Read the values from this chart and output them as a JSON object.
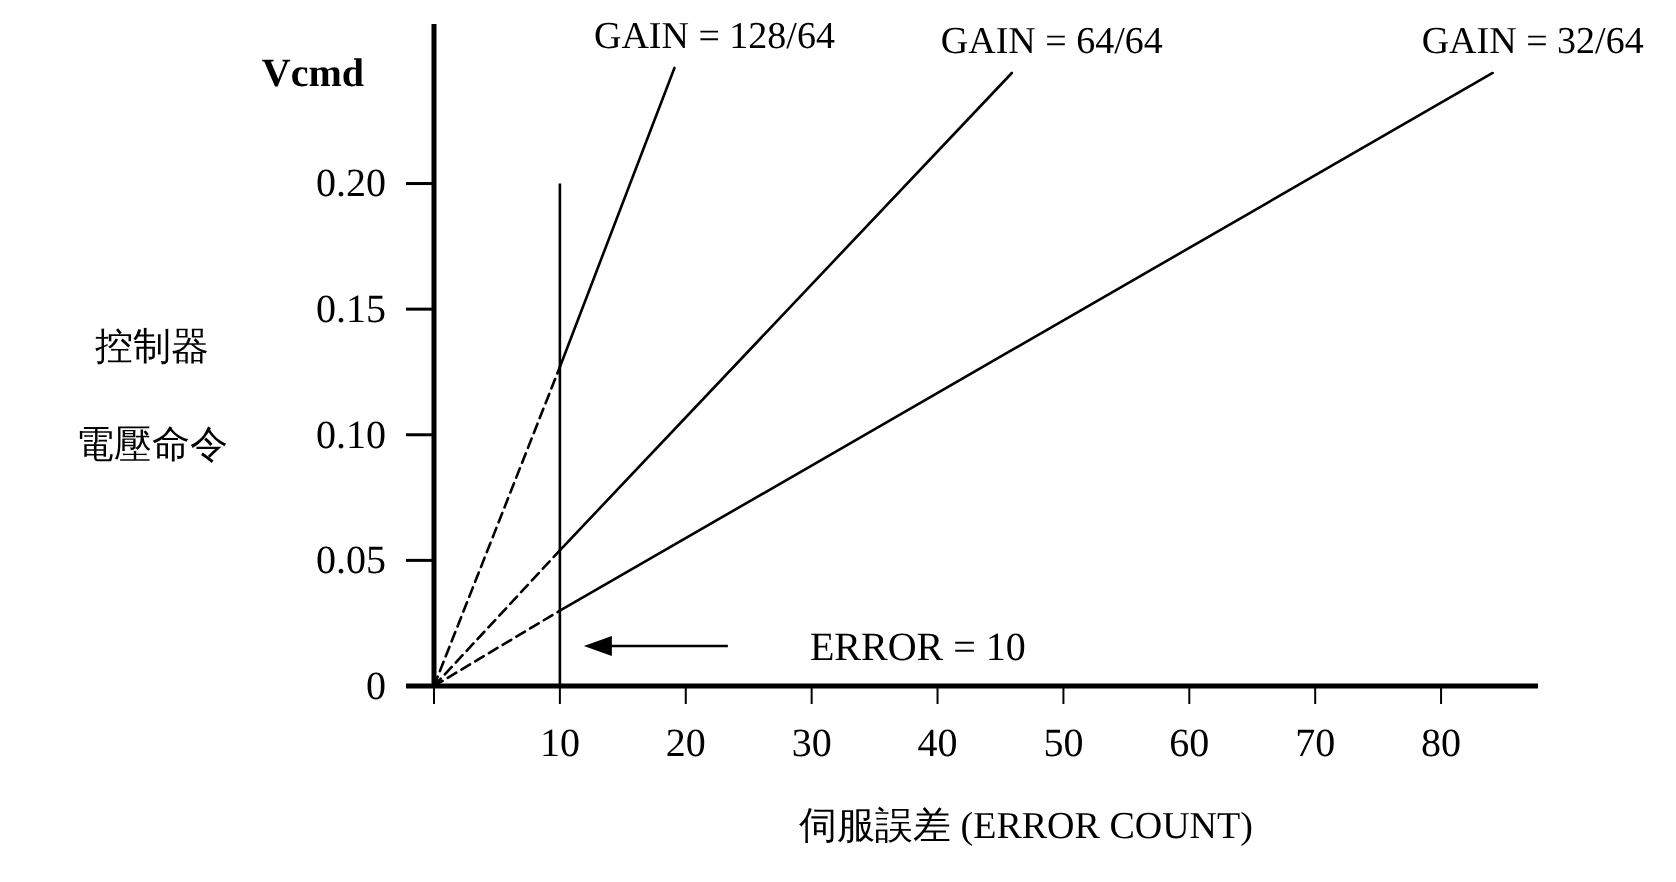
{
  "chart_data": {
    "type": "line",
    "xlabel": "伺服誤差 (ERROR COUNT)",
    "ylabel": "控制器電壓命令",
    "annotations": [
      "Vcmd",
      "ERROR = 10"
    ],
    "ref_lines": [
      {
        "axis": "x",
        "value": 10,
        "color": "#000000"
      }
    ],
    "xlim": [
      0,
      87.7
    ],
    "ylim": [
      0,
      0.2635
    ],
    "xticks": [
      {
        "value": 0,
        "label": null
      },
      10,
      20,
      30,
      40,
      50,
      60,
      70,
      80
    ],
    "yticks": [
      0,
      0.05,
      {
        "value": 0.1,
        "label": "0.10"
      },
      0.15,
      {
        "value": 0.2,
        "label": "0.20"
      }
    ],
    "grid": false,
    "legend": false,
    "marker": "none",
    "series": [
      {
        "color": "#000000",
        "line_style": "dashed",
        "x": [
          0,
          10
        ],
        "values": [
          0,
          0.127
        ]
      },
      {
        "name": "GAIN = 128/64",
        "color": "#000000",
        "line_style": "solid",
        "x": [
          10,
          19.1
        ],
        "values": [
          0.127,
          0.246
        ]
      },
      {
        "color": "#000000",
        "line_style": "dashed",
        "x": [
          0,
          10
        ],
        "values": [
          0,
          0.054
        ]
      },
      {
        "name": "GAIN = 64/64",
        "color": "#000000",
        "line_style": "solid",
        "x": [
          10,
          45.9
        ],
        "values": [
          0.054,
          0.244
        ]
      },
      {
        "color": "#000000",
        "line_style": "dashed",
        "x": [
          0,
          10
        ],
        "values": [
          0,
          0.03
        ]
      },
      {
        "name": "GAIN = 32/64",
        "color": "#000000",
        "line_style": "solid",
        "x": [
          10,
          84.1
        ],
        "values": [
          0.03,
          0.244
        ]
      }
    ]
  }
}
